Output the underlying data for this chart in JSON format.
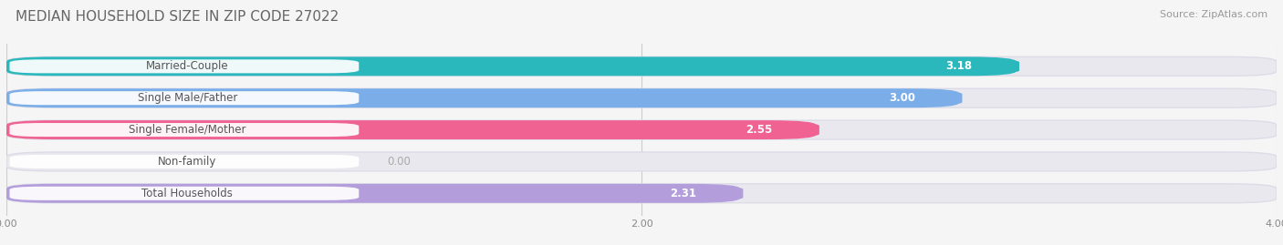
{
  "title": "MEDIAN HOUSEHOLD SIZE IN ZIP CODE 27022",
  "source": "Source: ZipAtlas.com",
  "categories": [
    "Married-Couple",
    "Single Male/Father",
    "Single Female/Mother",
    "Non-family",
    "Total Households"
  ],
  "values": [
    3.18,
    3.0,
    2.55,
    0.0,
    2.31
  ],
  "bar_colors": [
    "#2ab8bc",
    "#7baee8",
    "#f06292",
    "#f5c98a",
    "#b39ddb"
  ],
  "xlim": [
    0,
    4.0
  ],
  "xticks": [
    0.0,
    2.0,
    4.0
  ],
  "xtick_labels": [
    "0.00",
    "2.00",
    "4.00"
  ],
  "value_fontsize": 8.5,
  "label_fontsize": 8.5,
  "title_fontsize": 11,
  "source_fontsize": 8,
  "bar_height": 0.6,
  "background_color": "#f5f5f5",
  "bar_bg_color": "#e8e8ee",
  "bar_bg_outline": "#dcdce8"
}
